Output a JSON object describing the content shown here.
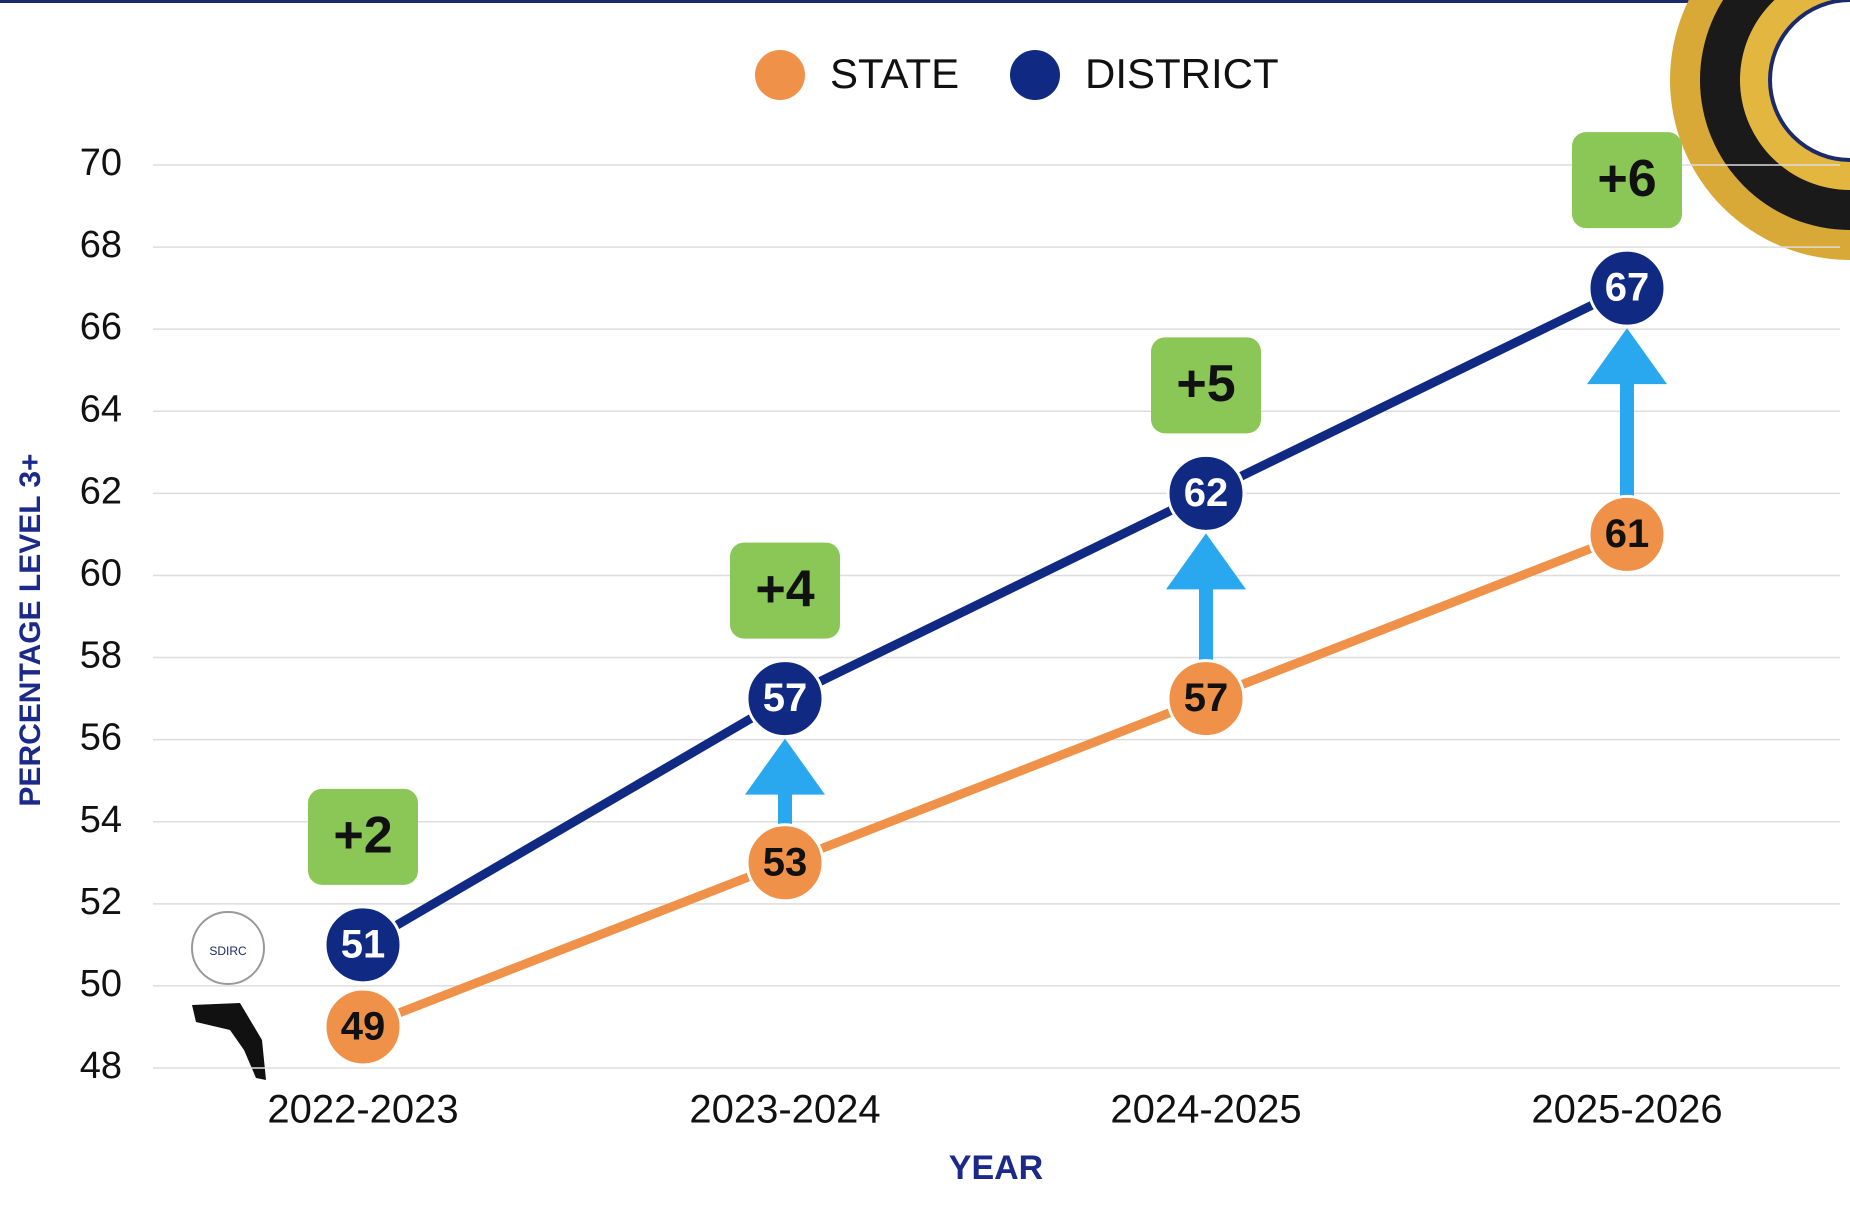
{
  "chart_data": {
    "type": "line",
    "categories": [
      "2022-2023",
      "2023-2024",
      "2024-2025",
      "2025-2026"
    ],
    "series": [
      {
        "name": "STATE",
        "color": "#ef9149",
        "values": [
          49,
          53,
          57,
          61
        ]
      },
      {
        "name": "DISTRICT",
        "color": "#102a83",
        "values": [
          51,
          57,
          62,
          67
        ]
      }
    ],
    "annotations": [
      "+2",
      "+4",
      "+5",
      "+6"
    ],
    "ylim": [
      48,
      70
    ],
    "yticks": [
      48,
      50,
      52,
      54,
      56,
      58,
      60,
      62,
      64,
      66,
      68,
      70
    ],
    "ylabel": "PERCENTAGE LEVEL 3+",
    "xlabel": "YEAR",
    "grid": true,
    "legend": "top",
    "logo_text": "SDIRC"
  }
}
